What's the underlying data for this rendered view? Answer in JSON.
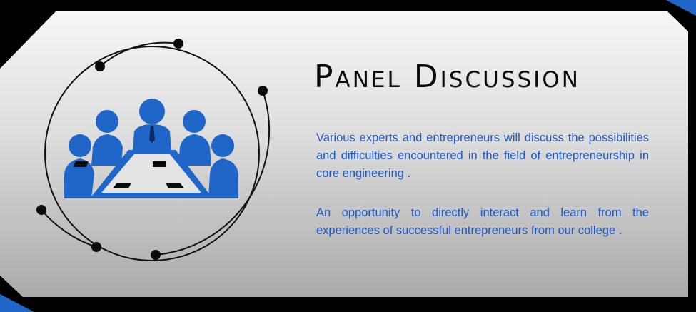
{
  "title": "Panel Discussion",
  "paragraphs": [
    "Various experts and entrepreneurs will discuss the possibilities and difficulties encountered in the field of entrepreneurship in core engineering .",
    "An opportunity to directly interact and learn from the experiences of successful entrepreneurs from our college ."
  ],
  "icon": "panel-meeting-icon",
  "colors": {
    "accent": "#1f66c8",
    "text_blue": "#1c58c7",
    "title": "#0b0b0b",
    "frame": "#000000",
    "panel_light": "#f3f3f3",
    "panel_dark": "#a8a8a8"
  }
}
